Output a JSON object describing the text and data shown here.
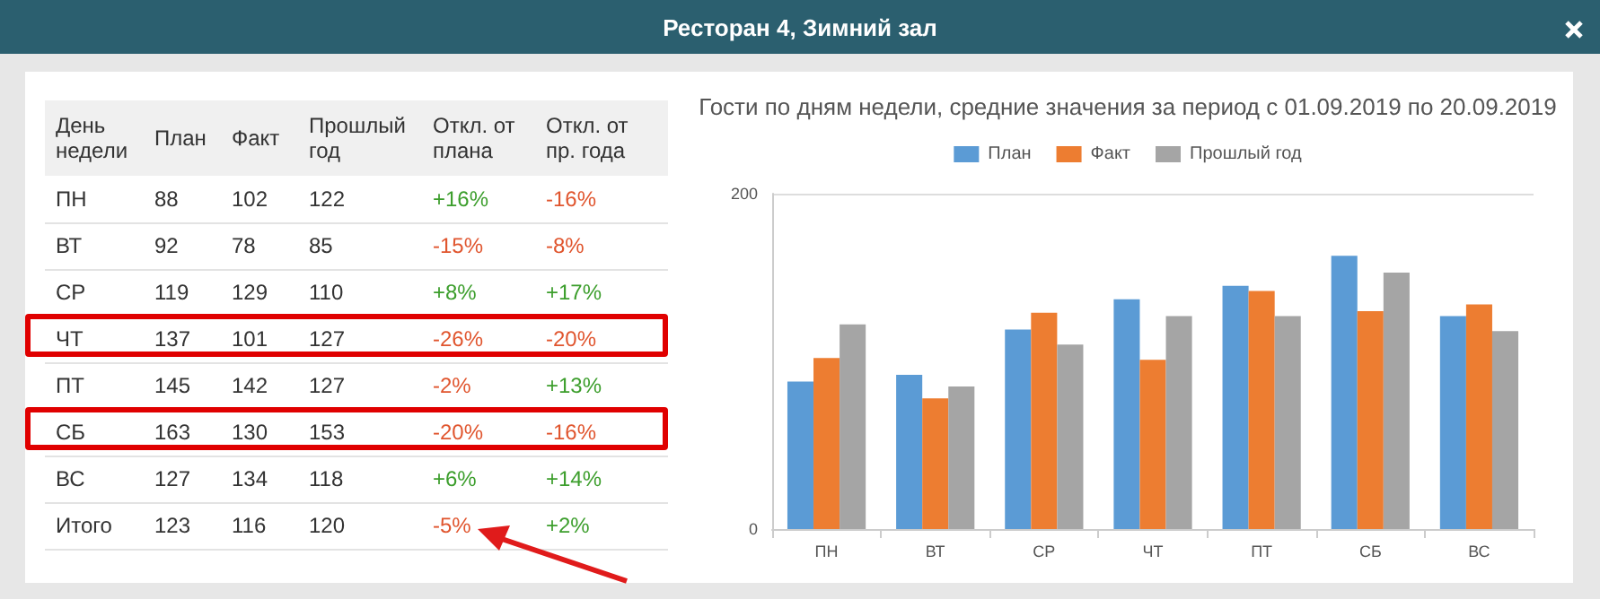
{
  "chart_data": [
    {
      "type": "other",
      "title": "Ресторан 4, Зимний зал",
      "xlabel": "День недели",
      "categories": [
        "ПН",
        "ВТ",
        "СР",
        "ЧТ",
        "ПТ",
        "СБ",
        "ВС",
        "Итого"
      ],
      "data_labels": true,
      "series": [
        {
          "name": "План",
          "values": [
            88,
            92,
            119,
            137,
            145,
            163,
            127,
            123
          ]
        },
        {
          "name": "Факт",
          "values": [
            102,
            78,
            129,
            101,
            142,
            130,
            134,
            116
          ]
        },
        {
          "name": "Прошлый год",
          "values": [
            122,
            85,
            110,
            127,
            127,
            153,
            118,
            120
          ]
        },
        {
          "name": "Откл. от плана",
          "values": [
            16,
            -15,
            8,
            -26,
            -2,
            -20,
            6,
            -5
          ],
          "value_labels": [
            "+16%",
            "-15%",
            "+8%",
            "-26%",
            "-2%",
            "-20%",
            "+6%",
            "-5%"
          ],
          "colors": [
            "#3c9e2c",
            "#e0552e",
            "#3c9e2c",
            "#e0552e",
            "#e0552e",
            "#e0552e",
            "#3c9e2c",
            "#e0552e"
          ]
        },
        {
          "name": "Откл. от пр. года",
          "values": [
            -16,
            -8,
            17,
            -20,
            13,
            -16,
            14,
            2
          ],
          "value_labels": [
            "-16%",
            "-8%",
            "+17%",
            "-20%",
            "+13%",
            "-16%",
            "+14%",
            "+2%"
          ],
          "colors": [
            "#e0552e",
            "#e0552e",
            "#3c9e2c",
            "#e0552e",
            "#3c9e2c",
            "#e0552e",
            "#3c9e2c",
            "#3c9e2c"
          ]
        }
      ]
    },
    {
      "type": "bar",
      "title": "Гости по дням недели, средние значения за период с 01.09.2019 по 20.09.2019",
      "categories": [
        "ПН",
        "ВТ",
        "СР",
        "ЧТ",
        "ПТ",
        "СБ",
        "ВС"
      ],
      "series": [
        {
          "name": "План",
          "color": "#5b9bd5",
          "values": [
            88,
            92,
            119,
            137,
            145,
            163,
            127
          ]
        },
        {
          "name": "Факт",
          "color": "#ed7d31",
          "values": [
            102,
            78,
            129,
            101,
            142,
            130,
            134
          ]
        },
        {
          "name": "Прошлый год",
          "color": "#a5a5a5",
          "values": [
            122,
            85,
            110,
            127,
            127,
            153,
            118
          ]
        }
      ],
      "ylim": [
        0,
        200
      ],
      "yticks": [
        0,
        200
      ],
      "grid": "y",
      "legend": "top"
    }
  ]
}
